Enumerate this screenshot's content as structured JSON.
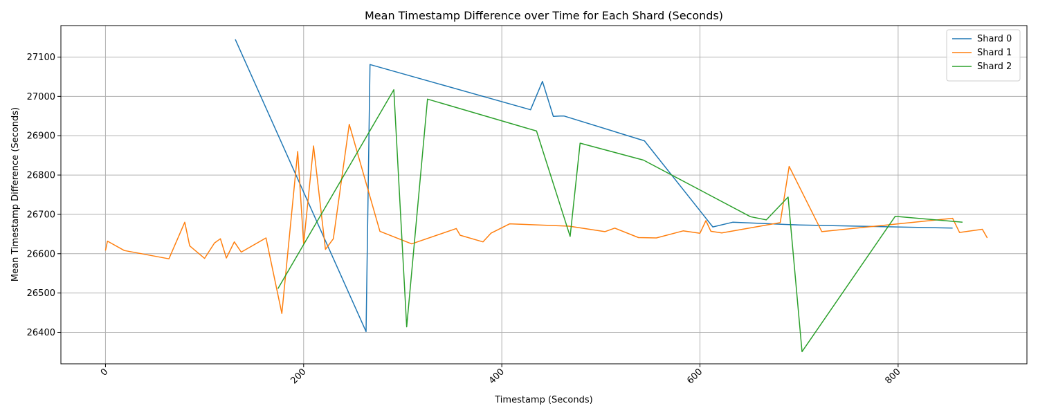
{
  "chart_data": {
    "type": "line",
    "title": "Mean Timestamp Difference over Time for Each Shard (Seconds)",
    "xlabel": "Timestamp (Seconds)",
    "ylabel": "Mean Timestamp Difference (Seconds)",
    "xlim": [
      -45,
      930
    ],
    "ylim": [
      26320,
      27180
    ],
    "xticks": [
      0,
      200,
      400,
      600,
      800
    ],
    "yticks": [
      26400,
      26500,
      26600,
      26700,
      26800,
      26900,
      27000,
      27100
    ],
    "grid": true,
    "legend_position": "top-right",
    "series": [
      {
        "name": "Shard 0",
        "color": "#1f77b4",
        "points": [
          [
            131,
            27145
          ],
          [
            263,
            26402
          ],
          [
            267,
            27081
          ],
          [
            429,
            26966
          ],
          [
            441,
            27038
          ],
          [
            452,
            26949
          ],
          [
            459,
            26950
          ],
          [
            463,
            26950
          ],
          [
            544,
            26887
          ],
          [
            613,
            26668
          ],
          [
            633,
            26680
          ],
          [
            700,
            26673
          ],
          [
            855,
            26665
          ]
        ]
      },
      {
        "name": "Shard 1",
        "color": "#ff7f0e",
        "points": [
          [
            0,
            26608
          ],
          [
            2,
            26632
          ],
          [
            19,
            26608
          ],
          [
            64,
            26587
          ],
          [
            80,
            26680
          ],
          [
            85,
            26620
          ],
          [
            100,
            26588
          ],
          [
            110,
            26627
          ],
          [
            116,
            26638
          ],
          [
            122,
            26589
          ],
          [
            130,
            26630
          ],
          [
            137,
            26604
          ],
          [
            162,
            26640
          ],
          [
            178,
            26448
          ],
          [
            194,
            26860
          ],
          [
            200,
            26625
          ],
          [
            210,
            26874
          ],
          [
            222,
            26611
          ],
          [
            230,
            26638
          ],
          [
            246,
            26929
          ],
          [
            277,
            26657
          ],
          [
            309,
            26625
          ],
          [
            354,
            26664
          ],
          [
            358,
            26647
          ],
          [
            381,
            26630
          ],
          [
            389,
            26652
          ],
          [
            408,
            26676
          ],
          [
            468,
            26670
          ],
          [
            504,
            26656
          ],
          [
            514,
            26665
          ],
          [
            538,
            26641
          ],
          [
            556,
            26640
          ],
          [
            583,
            26658
          ],
          [
            600,
            26652
          ],
          [
            606,
            26684
          ],
          [
            611,
            26657
          ],
          [
            622,
            26653
          ],
          [
            681,
            26679
          ],
          [
            690,
            26822
          ],
          [
            723,
            26656
          ],
          [
            800,
            26676
          ],
          [
            855,
            26690
          ],
          [
            862,
            26654
          ],
          [
            885,
            26662
          ],
          [
            890,
            26640
          ]
        ]
      },
      {
        "name": "Shard 2",
        "color": "#2ca02c",
        "points": [
          [
            174,
            26511
          ],
          [
            291,
            27017
          ],
          [
            304,
            26414
          ],
          [
            325,
            26993
          ],
          [
            435,
            26912
          ],
          [
            469,
            26644
          ],
          [
            479,
            26881
          ],
          [
            543,
            26838
          ],
          [
            651,
            26694
          ],
          [
            667,
            26686
          ],
          [
            689,
            26744
          ],
          [
            703,
            26351
          ],
          [
            797,
            26695
          ],
          [
            865,
            26680
          ]
        ]
      }
    ]
  }
}
